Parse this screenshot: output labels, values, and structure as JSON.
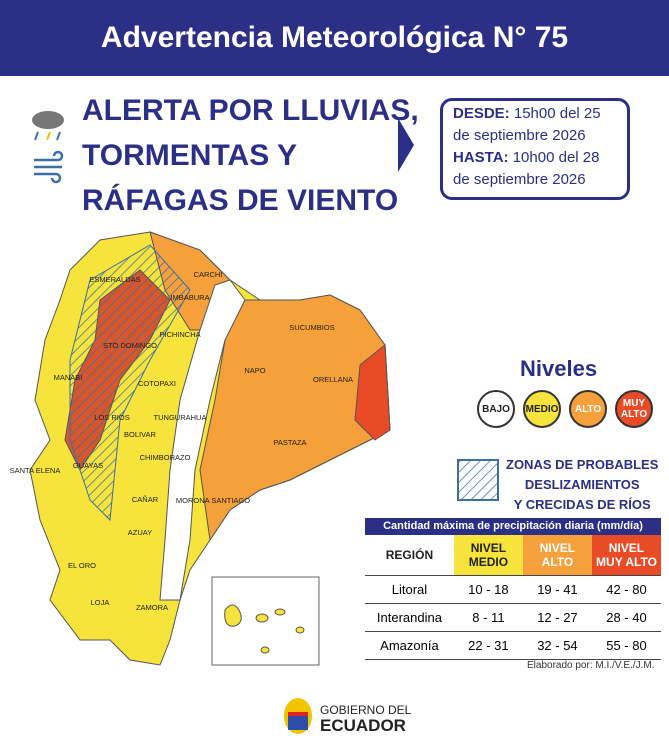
{
  "header": {
    "title": "Advertencia Meteorológica N° 75"
  },
  "alert": {
    "lines": [
      "ALERTA POR LLUVIAS,",
      "TORMENTAS Y",
      "RÁFAGAS DE VIENTO"
    ]
  },
  "period": {
    "from": {
      "label": "DESDE:",
      "text": "15h00 del 25 de septiembre 2026"
    },
    "to": {
      "label": "HASTA:",
      "text": "10h00 del 28 de septiembre 2026"
    }
  },
  "map": {
    "provinces": [
      "ESMERALDAS",
      "CARCHI",
      "IMBABURA",
      "PICHINCHA",
      "STO DOMINGO",
      "SUCUMBIOS",
      "MANABI",
      "COTOPAXI",
      "NAPO",
      "ORELLANA",
      "LOS RIOS",
      "TUNGURAHUA",
      "BOLIVAR",
      "PASTAZA",
      "SANTA ELENA",
      "CHIMBORAZO",
      "GUAYAS",
      "MORONA SANTIAGO",
      "CAÑAR",
      "AZUAY",
      "EL ORO",
      "LOJA",
      "ZAMORA"
    ]
  },
  "levels": {
    "title": "Niveles",
    "items": [
      [
        "BAJO"
      ],
      [
        "MEDIO"
      ],
      [
        "ALTO"
      ],
      [
        "MUY",
        "ALTO"
      ]
    ]
  },
  "hazard_legend": {
    "lines": [
      "ZONAS DE PROBABLES",
      "DESLIZAMIENTOS",
      "Y CRECIDAS DE RÍOS"
    ]
  },
  "table": {
    "caption": "Cantidad máxima de precipitación diaria (mm/día)",
    "headers": [
      [
        "REGIÓN"
      ],
      [
        "NIVEL",
        "MEDIO"
      ],
      [
        "NIVEL",
        "ALTO"
      ],
      [
        "NIVEL",
        "MUY ALTO"
      ]
    ],
    "rows": [
      [
        "Litoral",
        "10 - 18",
        "19 - 41",
        "42 - 80"
      ],
      [
        "Interandina",
        "8 - 11",
        "12 - 27",
        "28 - 40"
      ],
      [
        "Amazonía",
        "22 - 31",
        "32 - 54",
        "55 - 80"
      ]
    ]
  },
  "credit": "Elaborado por:  M.I./V.E./J.M.",
  "footer": {
    "lines": [
      "GOBIERNO DEL",
      "ECUADOR"
    ]
  }
}
